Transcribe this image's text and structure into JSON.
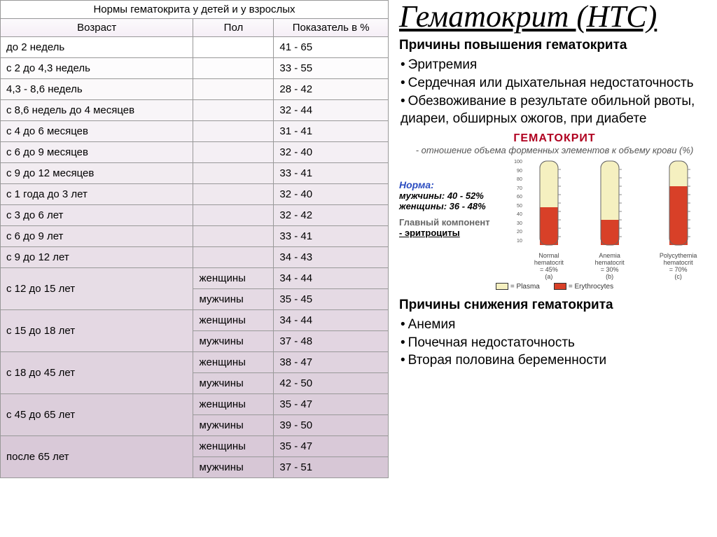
{
  "table": {
    "title": "Нормы гематокрита у детей и у взрослых",
    "headers": [
      "Возраст",
      "Пол",
      "Показатель в %"
    ],
    "gradient_top": "#ffffff",
    "gradient_mid": "#e9dfe8",
    "gradient_bot": "#d7c7d6",
    "rows": [
      {
        "age": "до 2 недель",
        "sex": "",
        "val": "41 - 65",
        "span": 1
      },
      {
        "age": "с 2 до 4,3 недель",
        "sex": "",
        "val": "33 - 55",
        "span": 1
      },
      {
        "age": "4,3 - 8,6 недель",
        "sex": "",
        "val": "28 - 42",
        "span": 1
      },
      {
        "age": "с 8,6 недель до 4 месяцев",
        "sex": "",
        "val": "32 - 44",
        "span": 1
      },
      {
        "age": "с 4 до 6 месяцев",
        "sex": "",
        "val": "31 - 41",
        "span": 1
      },
      {
        "age": "с 6 до 9 месяцев",
        "sex": "",
        "val": "32 - 40",
        "span": 1
      },
      {
        "age": "с 9 до 12 месяцев",
        "sex": "",
        "val": "33 - 41",
        "span": 1
      },
      {
        "age": "с 1 года до 3 лет",
        "sex": "",
        "val": "32 - 40",
        "span": 1
      },
      {
        "age": "с 3 до 6 лет",
        "sex": "",
        "val": "32 - 42",
        "span": 1
      },
      {
        "age": "с 6 до 9 лет",
        "sex": "",
        "val": "33 - 41",
        "span": 1
      },
      {
        "age": "с 9 до 12 лет",
        "sex": "",
        "val": "34 - 43",
        "span": 1
      },
      {
        "age": "с 12 до 15 лет",
        "sex": "женщины",
        "val": "34 - 44",
        "span": 2
      },
      {
        "age": "",
        "sex": "мужчины",
        "val": "35 - 45",
        "span": 0
      },
      {
        "age": "с 15 до 18 лет",
        "sex": "женщины",
        "val": "34 - 44",
        "span": 2
      },
      {
        "age": "",
        "sex": "мужчины",
        "val": "37 - 48",
        "span": 0
      },
      {
        "age": "с 18 до 45 лет",
        "sex": "женщины",
        "val": "38 - 47",
        "span": 2
      },
      {
        "age": "",
        "sex": "мужчины",
        "val": "42 - 50",
        "span": 0
      },
      {
        "age": "с 45 до 65 лет",
        "sex": "женщины",
        "val": "35 - 47",
        "span": 2
      },
      {
        "age": "",
        "sex": "мужчины",
        "val": "39 - 50",
        "span": 0
      },
      {
        "age": "после 65 лет",
        "sex": "женщины",
        "val": "35 - 47",
        "span": 2
      },
      {
        "age": "",
        "sex": "мужчины",
        "val": "37 - 51",
        "span": 0
      }
    ]
  },
  "right": {
    "title": "Гематокрит (НТС)",
    "increase_title": "Причины повышения гематокрита",
    "increase": [
      "Эритремия",
      "Сердечная или дыхательная недостаточность",
      "Обезвоживание в результате обильной рвоты, диареи, обширных ожогов, при диабете"
    ],
    "decrease_title": "Причины снижения гематокрита",
    "decrease": [
      "Анемия",
      "Почечная недостаточность",
      "Вторая половина беременности"
    ]
  },
  "diagram": {
    "title": "ГЕМАТОКРИТ",
    "subtitle": "- отношение объема форменных элементов к объему крови (%)",
    "norm_label": "Норма:",
    "norm_m": "мужчины: 40 - 52%",
    "norm_f": "женщины: 36 - 48%",
    "comp_label": "Главный компонент",
    "comp_val": "- эритроциты",
    "scale": [
      "100",
      "90",
      "80",
      "70",
      "60",
      "50",
      "40",
      "30",
      "20",
      "10"
    ],
    "tubes": [
      {
        "label": "Normal hematocrit",
        "pct": "= 45%",
        "fill": 45,
        "label2": "(a)"
      },
      {
        "label": "Anemia hematocrit",
        "pct": "= 30%",
        "fill": 30,
        "label2": "(b)"
      },
      {
        "label": "Polycythemia hematocrit",
        "pct": "= 70%",
        "fill": 70,
        "label2": "(c)"
      }
    ],
    "legend_plasma": "= Plasma",
    "legend_ery": "= Erythrocytes",
    "plasma_color": "#f5f0c0",
    "ery_color": "#d84028",
    "title_color": "#b00020",
    "norm_color": "#2a4cc0"
  }
}
